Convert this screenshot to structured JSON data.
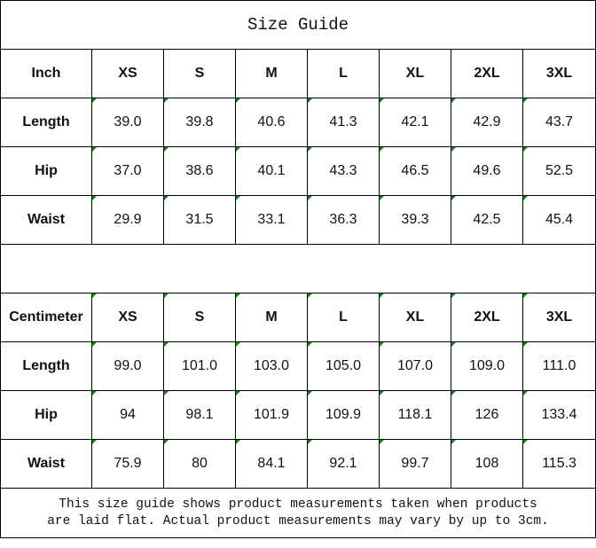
{
  "title": "Size Guide",
  "sizes": [
    "XS",
    "S",
    "M",
    "L",
    "XL",
    "2XL",
    "3XL"
  ],
  "indicator_color": "#1a7f1a",
  "inch": {
    "unit": "Inch",
    "rows": [
      {
        "label": "Length",
        "values": [
          "39.0",
          "39.8",
          "40.6",
          "41.3",
          "42.1",
          "42.9",
          "43.7"
        ]
      },
      {
        "label": "Hip",
        "values": [
          "37.0",
          "38.6",
          "40.1",
          "43.3",
          "46.5",
          "49.6",
          "52.5"
        ]
      },
      {
        "label": "Waist",
        "values": [
          "29.9",
          "31.5",
          "33.1",
          "36.3",
          "39.3",
          "42.5",
          "45.4"
        ]
      }
    ]
  },
  "centimeter": {
    "unit": "Centimeter",
    "rows": [
      {
        "label": "Length",
        "values": [
          "99.0",
          "101.0",
          "103.0",
          "105.0",
          "107.0",
          "109.0",
          "111.0"
        ]
      },
      {
        "label": "Hip",
        "values": [
          "94",
          "98.1",
          "101.9",
          "109.9",
          "118.1",
          "126",
          "133.4"
        ]
      },
      {
        "label": "Waist",
        "values": [
          "75.9",
          "80",
          "84.1",
          "92.1",
          "99.7",
          "108",
          "115.3"
        ]
      }
    ]
  },
  "note_lines": [
    "This size guide shows product measurements taken when products",
    "are laid flat. Actual product measurements may vary by up to 3cm."
  ]
}
